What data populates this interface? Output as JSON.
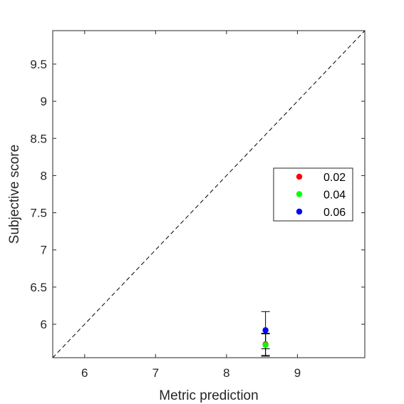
{
  "chart_data": {
    "type": "scatter",
    "title": "",
    "xlabel": "Metric prediction",
    "ylabel": "Subjective score",
    "xlim": [
      5.55,
      9.95
    ],
    "ylim": [
      5.55,
      9.95
    ],
    "x_ticks": [
      6,
      7,
      8,
      9
    ],
    "x_tick_labels": [
      "6",
      "7",
      "8",
      "9"
    ],
    "y_ticks": [
      6,
      6.5,
      7,
      7.5,
      8,
      8.5,
      9,
      9.5
    ],
    "y_tick_labels": [
      "6",
      "6.5",
      "7",
      "7.5",
      "8",
      "8.5",
      "9",
      "9.5"
    ],
    "grid": false,
    "reference_line": {
      "style": "dashed",
      "from": [
        5.55,
        5.55
      ],
      "to": [
        9.95,
        9.95
      ],
      "color": "#000000"
    },
    "legend_position": "right",
    "series": [
      {
        "name": "0.02",
        "color": "#ff0000",
        "points": [
          {
            "x": 8.55,
            "y": 5.73,
            "err_low": 0.15,
            "err_high": 0.15
          }
        ]
      },
      {
        "name": "0.04",
        "color": "#00ff00",
        "points": [
          {
            "x": 8.55,
            "y": 5.72,
            "err_low": 0.15,
            "err_high": 0.15
          }
        ]
      },
      {
        "name": "0.06",
        "color": "#0000ff",
        "points": [
          {
            "x": 8.55,
            "y": 5.92,
            "err_low": 0.25,
            "err_high": 0.25
          }
        ]
      }
    ]
  }
}
